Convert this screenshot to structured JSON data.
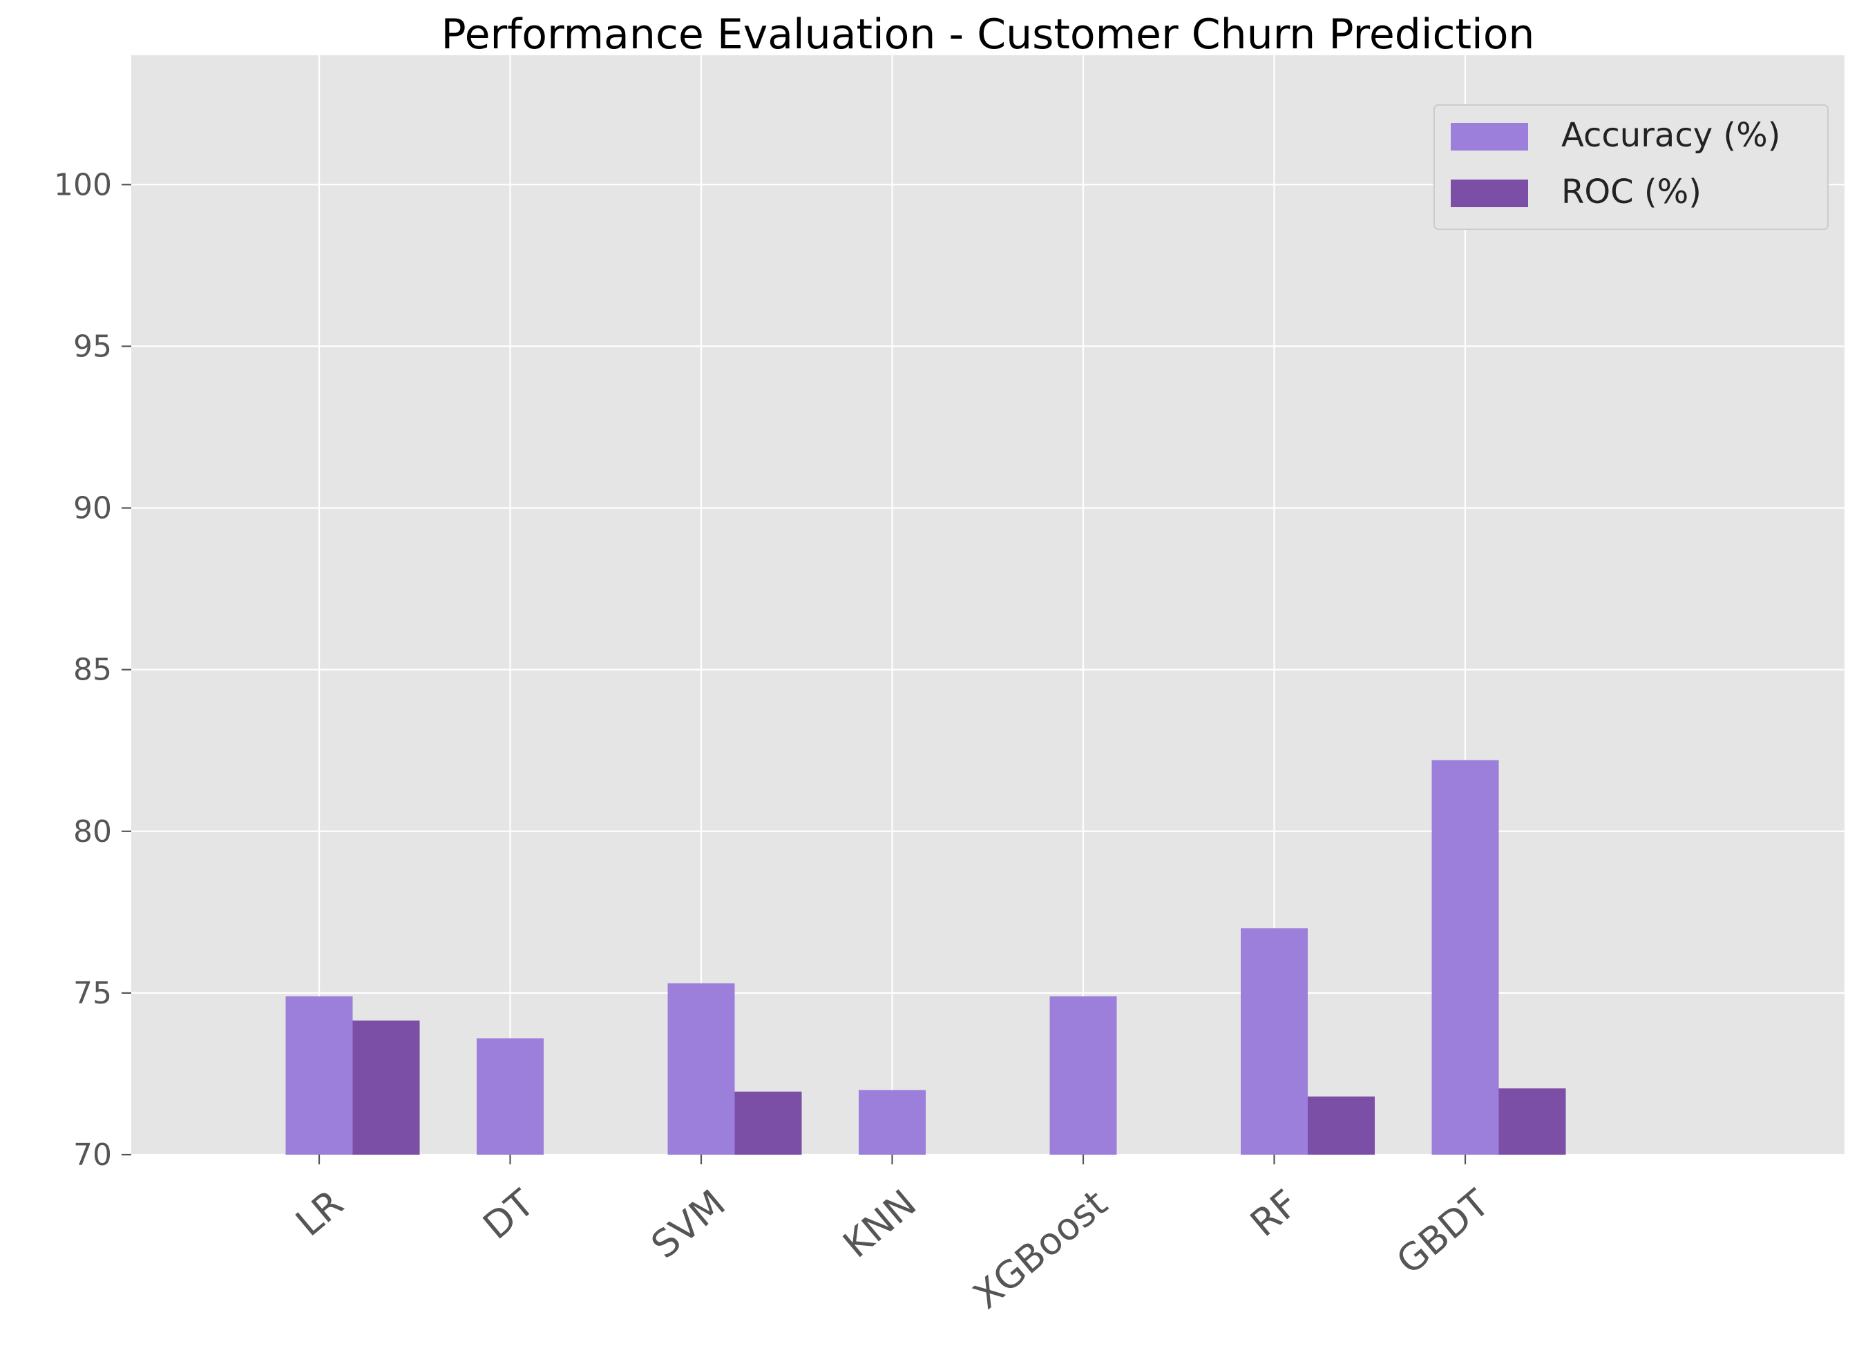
{
  "chart_data": {
    "type": "bar",
    "title": "Performance Evaluation - Customer Churn Prediction",
    "xlabel": "",
    "ylabel": "",
    "categories": [
      "LR",
      "DT",
      "SVM",
      "KNN",
      "XGBoost",
      "RF",
      "GBDT"
    ],
    "series": [
      {
        "name": "Accuracy (%)",
        "color": "#9b7fdb",
        "values": [
          74.9,
          73.6,
          75.3,
          72.0,
          74.9,
          77.0,
          82.2
        ]
      },
      {
        "name": "ROC (%)",
        "color": "#7b4fa6",
        "values": [
          74.15,
          null,
          71.95,
          null,
          null,
          71.8,
          72.05
        ]
      }
    ],
    "ylim": [
      70,
      104
    ],
    "yticks": [
      70,
      75,
      80,
      85,
      90,
      95,
      100
    ],
    "grid": true,
    "legend_position": "top-right",
    "background_color": "#e5e5e5",
    "grid_color": "#ffffff"
  }
}
